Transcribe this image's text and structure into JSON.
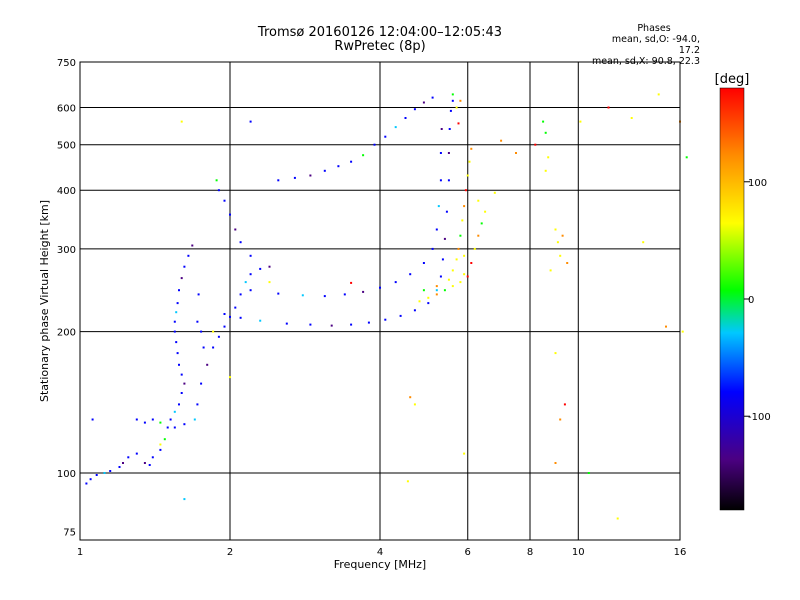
{
  "chart_data": {
    "type": "scatter",
    "title": "Tromsø 20160126 12:04:00–12:05:43",
    "subtitle": "RwPretec (8p)",
    "xlabel": "Frequency [MHz]",
    "ylabel": "Stationary phase Virtual Height [km]",
    "x_scale": "log",
    "y_scale": "log",
    "xlim": [
      1,
      16
    ],
    "ylim": [
      72,
      750
    ],
    "x_ticks": [
      1,
      2,
      4,
      6,
      8,
      10,
      16
    ],
    "x_tick_labels": [
      "1",
      "2",
      "4",
      "6",
      "8",
      "10",
      "16"
    ],
    "y_ticks": [
      75,
      100,
      200,
      300,
      400,
      500,
      600,
      750
    ],
    "y_tick_labels": [
      "75",
      "100",
      "200",
      "300",
      "400",
      "500",
      "600",
      "750"
    ],
    "grid": true,
    "info": {
      "heading": "Phases",
      "line1": "mean, sd,O: -94.0, 17.2",
      "line2": "mean, sd,X:  90.8, 22.3"
    },
    "colorbar": {
      "label": "[deg]",
      "range": [
        -180,
        180
      ],
      "ticks": [
        100,
        0,
        -100
      ],
      "tick_labels": [
        "100",
        "0",
        "-100"
      ],
      "colormap": [
        "#000000",
        "#4b0082",
        "#0000ff",
        "#00c8ff",
        "#00ff00",
        "#ffff00",
        "#ff8c00",
        "#ff0000"
      ]
    },
    "series": [
      {
        "points": [
          [
            1.03,
            95
          ],
          [
            1.05,
            97
          ],
          [
            1.08,
            99
          ],
          [
            1.12,
            100
          ],
          [
            1.15,
            101
          ],
          [
            1.2,
            103
          ],
          [
            1.22,
            105
          ],
          [
            1.25,
            108
          ],
          [
            1.3,
            110
          ],
          [
            1.35,
            105
          ],
          [
            1.38,
            104
          ],
          [
            1.4,
            108
          ],
          [
            1.45,
            112
          ],
          [
            1.48,
            118
          ],
          [
            1.5,
            125
          ],
          [
            1.52,
            130
          ],
          [
            1.55,
            135
          ],
          [
            1.58,
            140
          ],
          [
            1.6,
            148
          ],
          [
            1.62,
            155
          ],
          [
            1.6,
            162
          ],
          [
            1.58,
            170
          ],
          [
            1.57,
            180
          ],
          [
            1.56,
            190
          ],
          [
            1.55,
            200
          ],
          [
            1.55,
            210
          ],
          [
            1.56,
            220
          ],
          [
            1.57,
            230
          ],
          [
            1.58,
            245
          ],
          [
            1.6,
            260
          ],
          [
            1.62,
            275
          ],
          [
            1.65,
            290
          ],
          [
            1.68,
            305
          ],
          [
            1.3,
            130
          ],
          [
            1.35,
            128
          ],
          [
            1.4,
            130
          ],
          [
            1.45,
            128
          ],
          [
            1.55,
            125
          ],
          [
            1.62,
            127
          ],
          [
            1.7,
            130
          ],
          [
            1.72,
            140
          ],
          [
            1.75,
            155
          ],
          [
            1.8,
            170
          ],
          [
            1.85,
            185
          ],
          [
            1.9,
            195
          ],
          [
            1.95,
            205
          ],
          [
            2.0,
            215
          ],
          [
            2.05,
            225
          ],
          [
            2.1,
            240
          ],
          [
            2.15,
            255
          ],
          [
            2.2,
            265
          ],
          [
            2.3,
            272
          ],
          [
            2.4,
            275
          ],
          [
            2.2,
            290
          ],
          [
            2.1,
            310
          ],
          [
            2.05,
            330
          ],
          [
            2.0,
            355
          ],
          [
            1.95,
            380
          ],
          [
            1.9,
            400
          ],
          [
            1.88,
            420
          ],
          [
            1.95,
            218
          ],
          [
            2.1,
            214
          ],
          [
            2.3,
            211
          ],
          [
            2.6,
            208
          ],
          [
            2.9,
            207
          ],
          [
            3.2,
            206
          ],
          [
            3.5,
            207
          ],
          [
            3.8,
            209
          ],
          [
            4.1,
            212
          ],
          [
            4.4,
            216
          ],
          [
            4.7,
            222
          ],
          [
            5.0,
            230
          ],
          [
            5.2,
            245
          ],
          [
            5.3,
            262
          ],
          [
            5.35,
            285
          ],
          [
            5.4,
            315
          ],
          [
            5.45,
            360
          ],
          [
            5.5,
            420
          ],
          [
            5.5,
            480
          ],
          [
            5.52,
            540
          ],
          [
            5.55,
            590
          ],
          [
            5.6,
            620
          ],
          [
            5.6,
            640
          ],
          [
            2.2,
            245
          ],
          [
            2.5,
            241
          ],
          [
            2.8,
            239
          ],
          [
            3.1,
            238
          ],
          [
            3.4,
            240
          ],
          [
            3.7,
            243
          ],
          [
            4.0,
            248
          ],
          [
            4.3,
            255
          ],
          [
            4.6,
            265
          ],
          [
            4.9,
            280
          ],
          [
            5.1,
            300
          ],
          [
            5.2,
            330
          ],
          [
            5.25,
            370
          ],
          [
            5.3,
            420
          ],
          [
            5.3,
            480
          ],
          [
            5.32,
            540
          ],
          [
            2.5,
            420
          ],
          [
            2.7,
            425
          ],
          [
            2.9,
            430
          ],
          [
            3.1,
            440
          ],
          [
            3.3,
            450
          ],
          [
            3.5,
            460
          ],
          [
            3.7,
            475
          ],
          [
            3.9,
            500
          ],
          [
            4.1,
            520
          ],
          [
            4.3,
            545
          ],
          [
            4.5,
            570
          ],
          [
            4.7,
            595
          ],
          [
            4.9,
            615
          ],
          [
            5.1,
            630
          ],
          [
            1.73,
            240
          ],
          [
            1.75,
            200
          ],
          [
            1.77,
            185
          ],
          [
            1.72,
            210
          ],
          [
            2.2,
            560
          ],
          [
            1.62,
            88
          ],
          [
            1.06,
            130
          ]
        ]
      },
      {
        "points": [
          [
            4.8,
            232
          ],
          [
            5.0,
            236
          ],
          [
            5.2,
            240
          ],
          [
            5.4,
            245
          ],
          [
            5.6,
            250
          ],
          [
            5.8,
            255
          ],
          [
            6.0,
            262
          ],
          [
            5.6,
            270
          ],
          [
            5.7,
            285
          ],
          [
            5.75,
            300
          ],
          [
            5.8,
            320
          ],
          [
            5.85,
            345
          ],
          [
            5.9,
            370
          ],
          [
            5.95,
            400
          ],
          [
            6.0,
            430
          ],
          [
            6.05,
            460
          ],
          [
            6.1,
            490
          ],
          [
            5.9,
            290
          ],
          [
            6.2,
            300
          ],
          [
            6.3,
            320
          ],
          [
            6.4,
            340
          ],
          [
            6.5,
            360
          ],
          [
            6.3,
            380
          ],
          [
            6.1,
            280
          ],
          [
            5.9,
            265
          ],
          [
            5.5,
            258
          ],
          [
            5.2,
            250
          ],
          [
            4.9,
            245
          ],
          [
            5.7,
            600
          ],
          [
            5.8,
            620
          ],
          [
            5.75,
            555
          ],
          [
            9.0,
            330
          ],
          [
            9.1,
            310
          ],
          [
            9.3,
            320
          ],
          [
            9.2,
            290
          ],
          [
            8.8,
            270
          ],
          [
            9.5,
            280
          ],
          [
            8.6,
            530
          ],
          [
            8.7,
            470
          ],
          [
            10.1,
            560
          ],
          [
            11.5,
            600
          ],
          [
            12.8,
            570
          ],
          [
            14.5,
            640
          ],
          [
            16.0,
            560
          ],
          [
            16.5,
            470
          ],
          [
            16.2,
            200
          ],
          [
            15.0,
            205
          ],
          [
            8.2,
            500
          ],
          [
            4.55,
            96
          ],
          [
            12.0,
            80
          ],
          [
            4.6,
            145
          ],
          [
            4.7,
            140
          ],
          [
            5.9,
            110
          ],
          [
            9.0,
            105
          ],
          [
            10.5,
            100
          ],
          [
            2.0,
            160
          ],
          [
            2.4,
            255
          ],
          [
            3.5,
            254
          ],
          [
            1.85,
            200
          ],
          [
            1.45,
            115
          ],
          [
            7.0,
            510
          ],
          [
            8.5,
            560
          ],
          [
            8.6,
            440
          ],
          [
            9.2,
            130
          ],
          [
            9.4,
            140
          ],
          [
            9.0,
            180
          ],
          [
            6.8,
            395
          ],
          [
            7.5,
            480
          ],
          [
            1.6,
            560
          ],
          [
            13.5,
            310
          ]
        ]
      }
    ]
  }
}
